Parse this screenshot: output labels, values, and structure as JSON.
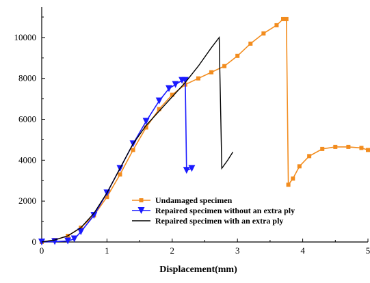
{
  "chart_data": {
    "type": "line",
    "title": "",
    "xlabel": "Displacement(mm)",
    "ylabel": "",
    "xlim": [
      0,
      5
    ],
    "ylim": [
      0,
      11500
    ],
    "xticks": [
      "0",
      "1",
      "2",
      "3",
      "4",
      "5"
    ],
    "yticks": [
      "0",
      "2000",
      "4000",
      "6000",
      "8000",
      "10000"
    ],
    "grid": false,
    "legend_position": "center-bottom",
    "series": [
      {
        "name": "Undamaged specimen",
        "color": "#f28c1e",
        "marker": "square",
        "x": [
          0,
          0.2,
          0.4,
          0.6,
          0.8,
          1.0,
          1.2,
          1.4,
          1.6,
          1.8,
          2.0,
          2.2,
          2.4,
          2.6,
          2.8,
          3.0,
          3.2,
          3.4,
          3.6,
          3.7,
          3.75,
          3.78,
          3.85,
          3.95,
          4.1,
          4.3,
          4.5,
          4.7,
          4.9,
          5.0
        ],
        "y": [
          0,
          100,
          300,
          700,
          1300,
          2200,
          3300,
          4500,
          5600,
          6500,
          7200,
          7700,
          8000,
          8300,
          8600,
          9100,
          9700,
          10200,
          10600,
          10900,
          10900,
          2800,
          3100,
          3700,
          4200,
          4550,
          4650,
          4650,
          4600,
          4500
        ]
      },
      {
        "name": "Repaired specimen without an extra ply",
        "color": "#1a1aff",
        "marker": "triangle-down",
        "x": [
          0,
          0.2,
          0.4,
          0.5,
          0.6,
          0.8,
          1.0,
          1.2,
          1.4,
          1.6,
          1.8,
          1.95,
          2.05,
          2.15,
          2.2,
          2.22,
          2.3
        ],
        "y": [
          0,
          20,
          50,
          150,
          500,
          1300,
          2400,
          3600,
          4800,
          5900,
          6900,
          7500,
          7700,
          7900,
          7900,
          3500,
          3600
        ]
      },
      {
        "name": "Repaired specimen with an extra ply",
        "color": "#000000",
        "marker": "none",
        "x": [
          0,
          0.2,
          0.4,
          0.6,
          0.8,
          1.0,
          1.2,
          1.4,
          1.6,
          1.8,
          2.0,
          2.2,
          2.4,
          2.6,
          2.72,
          2.76,
          2.85,
          2.93
        ],
        "y": [
          0,
          100,
          300,
          700,
          1400,
          2400,
          3600,
          4800,
          5700,
          6400,
          7100,
          7800,
          8600,
          9500,
          10000,
          3600,
          4000,
          4400
        ]
      }
    ]
  }
}
